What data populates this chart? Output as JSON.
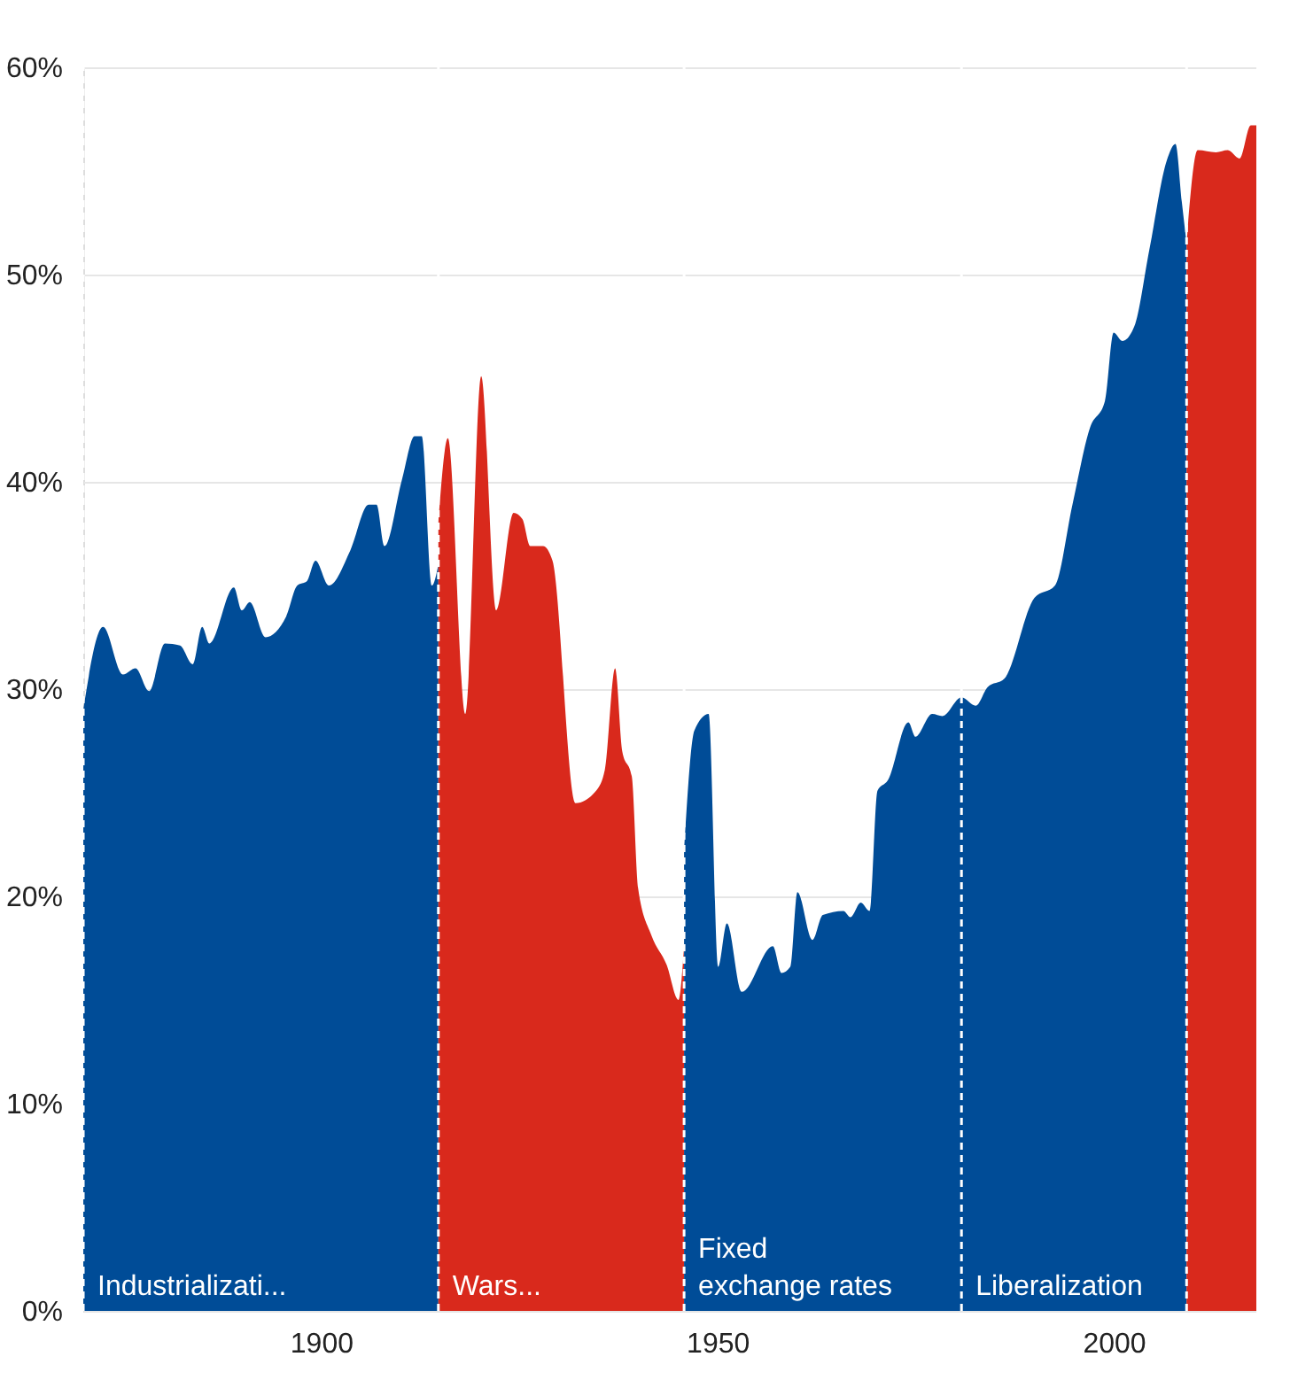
{
  "chart_data": {
    "type": "area",
    "xlim": [
      1870,
      2018
    ],
    "ylim": [
      0,
      60
    ],
    "xticks": [
      1900,
      1950,
      2000
    ],
    "yticks": [
      {
        "value": 0,
        "label": "0%"
      },
      {
        "value": 10,
        "label": "10%"
      },
      {
        "value": 20,
        "label": "20%"
      },
      {
        "value": 30,
        "label": "30%"
      },
      {
        "value": 40,
        "label": "40%"
      },
      {
        "value": 50,
        "label": "50%"
      },
      {
        "value": 60,
        "label": "60%"
      }
    ],
    "grid": "y",
    "series": [
      {
        "color": "#004c97",
        "x": [
          1870,
          1872.5,
          1875,
          1876.6,
          1878.3,
          1880.3,
          1882.2,
          1883.8,
          1885,
          1885.9,
          1889,
          1890,
          1891,
          1893,
          1895.6,
          1897,
          1898.2,
          1899.3,
          1901,
          1903.7,
          1906,
          1907,
          1908,
          1910.2,
          1911.8,
          1912.7,
          1914,
          1914.8
        ],
        "values": [
          29,
          33,
          30.7,
          31,
          29.9,
          32.2,
          32.1,
          31.2,
          33,
          32.2,
          34.9,
          33.8,
          34.2,
          32.5,
          33.5,
          35,
          35.2,
          36.2,
          35,
          36.7,
          38.9,
          38.9,
          36.9,
          40.1,
          42.2,
          42.2,
          35,
          36
        ]
      },
      {
        "color": "#d9291c",
        "x": [
          1914.8,
          1916,
          1918.2,
          1920.2,
          1922.1,
          1924.3,
          1925.4,
          1926.4,
          1928,
          1929.2,
          1932.1,
          1934.7,
          1935.8,
          1937.1,
          1938,
          1939.2,
          1940,
          1941.7,
          1943.6,
          1945.1,
          1945.8
        ],
        "values": [
          38,
          42.1,
          28.8,
          45.1,
          33.8,
          38.5,
          38.2,
          36.9,
          36.9,
          36.2,
          24.5,
          25.1,
          26.1,
          31,
          27,
          25.8,
          20.4,
          18.1,
          16.7,
          15,
          17.6
        ]
      },
      {
        "color": "#004c97",
        "x": [
          1945.8,
          1947.1,
          1948.9,
          1950.1,
          1951.2,
          1953.1,
          1957,
          1958.1,
          1959.2,
          1960.1,
          1962,
          1963.3,
          1965.9,
          1966.8,
          1968.1,
          1969.2,
          1970.2,
          1971.5,
          1974.1,
          1975,
          1977.1,
          1978.4,
          1980.8,
          1982.6,
          1984.1,
          1986.2,
          1990,
          1992.6,
          1994.8,
          1997,
          1998.9,
          2000,
          2001.1,
          2002.6,
          2004.5,
          2006.7,
          2007.8,
          2008.6,
          2009.2
        ],
        "values": [
          22,
          28,
          28.8,
          16.6,
          18.7,
          15.4,
          17.6,
          16.3,
          16.6,
          20.2,
          17.9,
          19.1,
          19.3,
          19,
          19.7,
          19.3,
          25.1,
          25.6,
          28.4,
          27.7,
          28.8,
          28.7,
          29.6,
          29.2,
          30.1,
          30.5,
          34.4,
          35,
          38.9,
          42.6,
          43.9,
          47.2,
          46.8,
          47.5,
          51.2,
          55.5,
          56.3,
          53.5,
          51.5
        ]
      },
      {
        "color": "#d9291c",
        "x": [
          2009.2,
          2010.6,
          2012.9,
          2014.4,
          2015.9,
          2017.3,
          2018
        ],
        "values": [
          51.5,
          56,
          55.9,
          56,
          55.6,
          57.2,
          57.2
        ]
      }
    ],
    "ref_lines": [
      {
        "axis": "x",
        "value": 1870,
        "label": "Industrializati...",
        "color": "#ffffff",
        "line_style": "dashed"
      },
      {
        "axis": "x",
        "value": 1914.8,
        "label": "Wars...",
        "color": "#ffffff",
        "line_style": "dashed"
      },
      {
        "axis": "x",
        "value": 1945.8,
        "label": "Fixed\nexchange rates",
        "color": "#ffffff",
        "line_style": "dashed"
      },
      {
        "axis": "x",
        "value": 1980.8,
        "label": "Liberalization",
        "color": "#ffffff",
        "line_style": "dashed"
      },
      {
        "axis": "x",
        "value": 2009.2,
        "label": null,
        "color": "#ffffff",
        "line_style": "dashed"
      }
    ]
  }
}
